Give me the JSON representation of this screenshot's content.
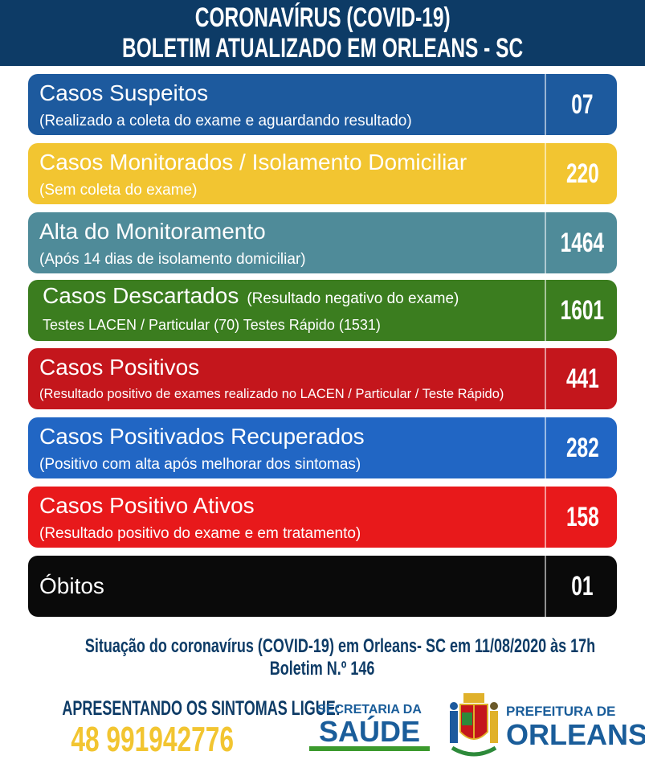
{
  "header": {
    "line1": "CORONAVÍRUS (COVID-19)",
    "line2": "BOLETIM ATUALIZADO EM ORLEANS - SC"
  },
  "cards": [
    {
      "title": "Casos Suspeitos",
      "subtitle": "(Realizado a coleta do exame e aguardando resultado)",
      "value": "07",
      "color": "#1d5a9e"
    },
    {
      "title": "Casos Monitorados / Isolamento Domiciliar",
      "subtitle": "(Sem coleta do exame)",
      "value": "220",
      "color": "#f2c531"
    },
    {
      "title": "Alta do Monitoramento",
      "subtitle": "(Após 14 dias de isolamento domiciliar)",
      "value": "1464",
      "color": "#4f8b99"
    },
    {
      "title": "Casos Descartados",
      "title_note": "(Resultado negativo do exame)",
      "subtitle": "Testes LACEN / Particular  (70)   Testes Rápido  (1531)",
      "value": "1601",
      "color": "#3b7d1f"
    },
    {
      "title": "Casos Positivos",
      "subtitle": "(Resultado positivo de exames realizado no LACEN / Particular / Teste Rápido)",
      "value": "441",
      "color": "#c4161c"
    },
    {
      "title": "Casos Positivados Recuperados",
      "subtitle": "(Positivo com alta após melhorar dos sintomas)",
      "value": "282",
      "color": "#2166c4"
    },
    {
      "title": "Casos Positivo Ativos",
      "subtitle": "(Resultado positivo do exame e em tratamento)",
      "value": "158",
      "color": "#e8191b"
    },
    {
      "title": "Óbitos",
      "subtitle": "",
      "value": "01",
      "color": "#0a0a0a"
    }
  ],
  "footer": {
    "situation": "Situação do coronavírus (COVID-19) em Orleans- SC em 11/08/2020 às 17h",
    "bulletin": "Boletim N.º 146",
    "phone_label": "APRESENTANDO OS SINTOMAS LIGUE:",
    "phone": "48 991942776",
    "saude_logo": {
      "line1": "SECRETARIA DA",
      "line2": "SAÚDE"
    },
    "prefeitura_logo": {
      "line1": "PREFEITURA DE",
      "line2": "ORLEANS"
    }
  }
}
